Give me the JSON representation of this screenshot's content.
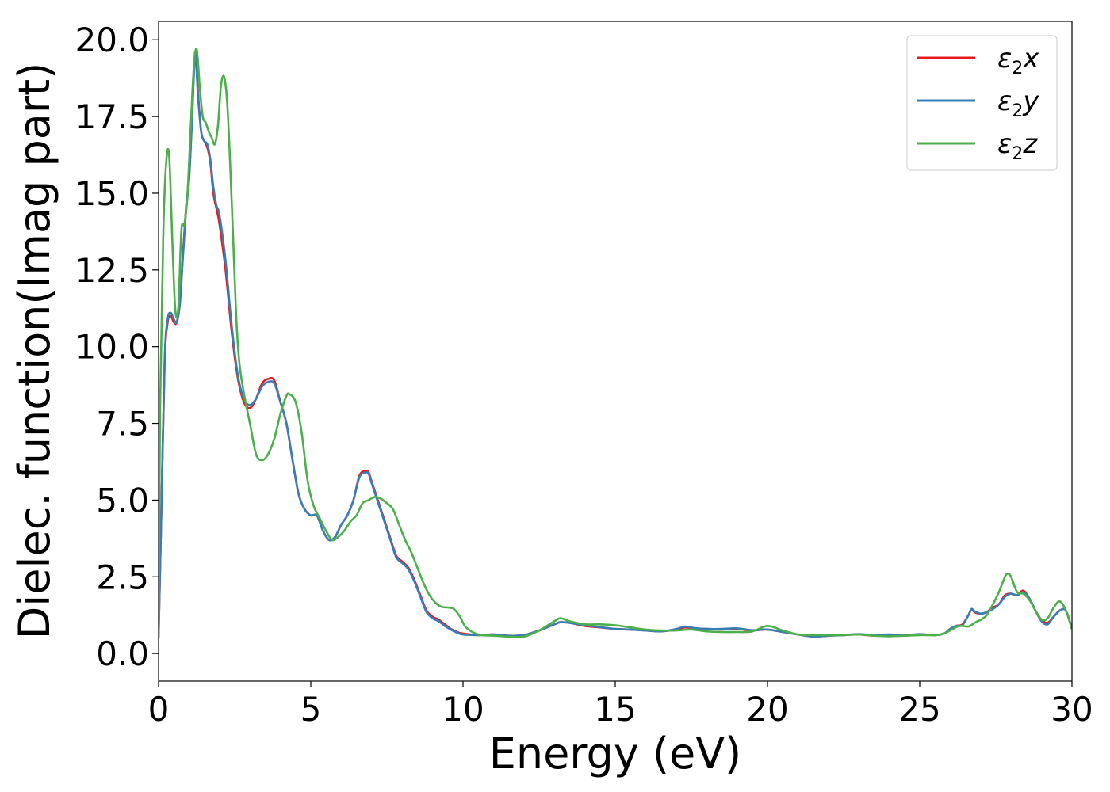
{
  "chart_data": {
    "type": "line",
    "xlabel": "Energy (eV)",
    "ylabel": "Dielec. function(Imag part)",
    "xlim": [
      0,
      30
    ],
    "ylim": [
      -0.9,
      20.6
    ],
    "xticks": [
      0,
      5,
      10,
      15,
      20,
      25,
      30
    ],
    "xtick_labels": [
      "0",
      "5",
      "10",
      "15",
      "20",
      "25",
      "30"
    ],
    "yticks": [
      0,
      2.5,
      5,
      7.5,
      10,
      12.5,
      15,
      17.5,
      20
    ],
    "ytick_labels": [
      "0.0",
      "2.5",
      "5.0",
      "7.5",
      "10.0",
      "12.5",
      "15.0",
      "17.5",
      "20.0"
    ],
    "grid": false,
    "legend_position": "top-right",
    "series": [
      {
        "name": "ε2x",
        "label_base": "ε",
        "label_sub": "2",
        "label_tail": "x",
        "color": "#e41a1c",
        "x": [
          0,
          0.1,
          0.2,
          0.3,
          0.4,
          0.5,
          0.6,
          0.7,
          0.8,
          0.9,
          1.0,
          1.1,
          1.2,
          1.3,
          1.4,
          1.5,
          1.6,
          1.7,
          1.8,
          1.9,
          2.0,
          2.2,
          2.4,
          2.6,
          2.8,
          3.0,
          3.2,
          3.4,
          3.6,
          3.8,
          4.0,
          4.2,
          4.4,
          4.6,
          4.8,
          5.0,
          5.2,
          5.4,
          5.6,
          5.8,
          6.0,
          6.2,
          6.4,
          6.6,
          6.8,
          6.9,
          7.0,
          7.2,
          7.4,
          7.6,
          7.8,
          8.0,
          8.2,
          8.4,
          8.6,
          8.8,
          9.0,
          9.2,
          9.4,
          9.6,
          9.8,
          10.0,
          10.5,
          11.0,
          11.5,
          12.0,
          12.5,
          13.0,
          13.2,
          13.5,
          14.0,
          14.5,
          15.0,
          15.5,
          16.0,
          16.5,
          17.0,
          17.3,
          17.6,
          18.0,
          18.5,
          19.0,
          19.5,
          20.0,
          20.5,
          21.0,
          21.5,
          22.0,
          22.5,
          23.0,
          23.5,
          24.0,
          24.5,
          25.0,
          25.5,
          25.8,
          26.0,
          26.2,
          26.4,
          26.6,
          26.7,
          26.8,
          27.0,
          27.2,
          27.4,
          27.6,
          27.8,
          28.0,
          28.2,
          28.4,
          28.6,
          28.8,
          29.0,
          29.2,
          29.4,
          29.6,
          29.8,
          30.0
        ],
        "values": [
          0.5,
          5.0,
          9.5,
          10.8,
          11.0,
          10.8,
          10.8,
          11.5,
          13.0,
          14.5,
          15.5,
          17.5,
          19.6,
          18.2,
          17.0,
          16.7,
          16.5,
          16.0,
          15.0,
          14.5,
          14.0,
          12.5,
          10.5,
          9.0,
          8.2,
          8.0,
          8.3,
          8.8,
          8.95,
          8.9,
          8.2,
          7.5,
          6.3,
          5.2,
          4.7,
          4.5,
          4.5,
          4.0,
          3.7,
          3.8,
          4.2,
          4.5,
          5.0,
          5.8,
          5.95,
          5.9,
          5.6,
          5.0,
          4.4,
          3.8,
          3.2,
          3.0,
          2.8,
          2.4,
          1.9,
          1.4,
          1.2,
          1.1,
          0.95,
          0.8,
          0.7,
          0.65,
          0.6,
          0.62,
          0.58,
          0.6,
          0.75,
          0.95,
          1.02,
          1.0,
          0.9,
          0.85,
          0.8,
          0.78,
          0.75,
          0.72,
          0.78,
          0.85,
          0.82,
          0.8,
          0.78,
          0.8,
          0.75,
          0.78,
          0.7,
          0.62,
          0.55,
          0.58,
          0.6,
          0.62,
          0.58,
          0.6,
          0.58,
          0.62,
          0.6,
          0.65,
          0.8,
          0.9,
          0.95,
          1.25,
          1.45,
          1.35,
          1.3,
          1.35,
          1.5,
          1.6,
          1.9,
          1.95,
          1.9,
          2.05,
          1.8,
          1.4,
          1.1,
          1.0,
          1.2,
          1.4,
          1.4,
          0.8
        ],
        "ylim_note": ""
      },
      {
        "name": "ε2y",
        "label_base": "ε",
        "label_sub": "2",
        "label_tail": "y",
        "color": "#377eb8",
        "x": [
          0,
          0.1,
          0.2,
          0.3,
          0.4,
          0.5,
          0.6,
          0.7,
          0.8,
          0.9,
          1.0,
          1.1,
          1.2,
          1.3,
          1.4,
          1.5,
          1.6,
          1.7,
          1.8,
          1.9,
          2.0,
          2.2,
          2.4,
          2.6,
          2.8,
          3.0,
          3.2,
          3.4,
          3.6,
          3.8,
          4.0,
          4.2,
          4.4,
          4.6,
          4.8,
          5.0,
          5.2,
          5.4,
          5.6,
          5.8,
          6.0,
          6.2,
          6.4,
          6.6,
          6.8,
          6.9,
          7.0,
          7.2,
          7.4,
          7.6,
          7.8,
          8.0,
          8.2,
          8.4,
          8.6,
          8.8,
          9.0,
          9.2,
          9.4,
          9.6,
          9.8,
          10.0,
          10.5,
          11.0,
          11.5,
          12.0,
          12.5,
          13.0,
          13.2,
          13.5,
          14.0,
          14.5,
          15.0,
          15.5,
          16.0,
          16.5,
          17.0,
          17.3,
          17.6,
          18.0,
          18.5,
          19.0,
          19.5,
          20.0,
          20.5,
          21.0,
          21.5,
          22.0,
          22.5,
          23.0,
          23.5,
          24.0,
          24.5,
          25.0,
          25.5,
          25.8,
          26.0,
          26.2,
          26.4,
          26.6,
          26.7,
          26.8,
          27.0,
          27.2,
          27.4,
          27.6,
          27.8,
          28.0,
          28.2,
          28.4,
          28.6,
          28.8,
          29.0,
          29.2,
          29.4,
          29.6,
          29.8,
          30.0
        ],
        "values": [
          0.5,
          5.0,
          9.6,
          10.9,
          11.1,
          10.9,
          10.8,
          11.4,
          12.9,
          14.4,
          15.4,
          17.4,
          19.5,
          18.1,
          17.0,
          16.7,
          16.6,
          16.1,
          15.2,
          14.6,
          14.3,
          12.8,
          10.7,
          9.1,
          8.3,
          8.1,
          8.3,
          8.7,
          8.85,
          8.8,
          8.2,
          7.5,
          6.3,
          5.2,
          4.7,
          4.5,
          4.5,
          4.0,
          3.7,
          3.8,
          4.2,
          4.5,
          5.0,
          5.75,
          5.9,
          5.85,
          5.55,
          4.95,
          4.35,
          3.75,
          3.15,
          2.95,
          2.75,
          2.35,
          1.85,
          1.35,
          1.15,
          1.05,
          0.9,
          0.78,
          0.68,
          0.62,
          0.6,
          0.62,
          0.58,
          0.6,
          0.75,
          0.95,
          1.02,
          1.0,
          0.92,
          0.86,
          0.8,
          0.78,
          0.75,
          0.72,
          0.8,
          0.88,
          0.83,
          0.8,
          0.8,
          0.82,
          0.76,
          0.78,
          0.7,
          0.62,
          0.55,
          0.58,
          0.6,
          0.63,
          0.6,
          0.62,
          0.6,
          0.63,
          0.6,
          0.65,
          0.8,
          0.9,
          0.92,
          1.25,
          1.45,
          1.38,
          1.3,
          1.35,
          1.45,
          1.6,
          1.85,
          1.95,
          1.9,
          2.0,
          1.8,
          1.4,
          1.05,
          0.95,
          1.2,
          1.4,
          1.4,
          0.8
        ]
      },
      {
        "name": "ε2z",
        "label_base": "ε",
        "label_sub": "2",
        "label_tail": "z",
        "color": "#4daf4a",
        "x": [
          0,
          0.05,
          0.15,
          0.25,
          0.35,
          0.45,
          0.55,
          0.65,
          0.75,
          0.85,
          0.95,
          1.05,
          1.15,
          1.25,
          1.35,
          1.45,
          1.55,
          1.65,
          1.75,
          1.85,
          1.95,
          2.05,
          2.15,
          2.25,
          2.35,
          2.45,
          2.55,
          2.65,
          2.8,
          3.0,
          3.2,
          3.4,
          3.6,
          3.8,
          4.0,
          4.2,
          4.3,
          4.5,
          4.7,
          4.9,
          5.1,
          5.3,
          5.5,
          5.7,
          5.9,
          6.1,
          6.3,
          6.5,
          6.7,
          6.9,
          7.1,
          7.3,
          7.5,
          7.7,
          7.9,
          8.1,
          8.3,
          8.5,
          8.7,
          8.9,
          9.1,
          9.3,
          9.5,
          9.7,
          9.9,
          10.1,
          10.5,
          11.0,
          11.5,
          12.0,
          12.5,
          13.0,
          13.2,
          13.5,
          14.0,
          14.5,
          15.0,
          15.5,
          16.0,
          16.5,
          17.0,
          17.5,
          18.0,
          18.5,
          19.0,
          19.5,
          20.0,
          20.5,
          21.0,
          21.5,
          22.0,
          22.5,
          23.0,
          23.5,
          24.0,
          24.5,
          25.0,
          25.5,
          25.8,
          26.0,
          26.3,
          26.6,
          26.8,
          27.0,
          27.2,
          27.4,
          27.6,
          27.8,
          27.9,
          28.0,
          28.2,
          28.4,
          28.6,
          28.8,
          29.0,
          29.2,
          29.4,
          29.6,
          29.8,
          30.0
        ],
        "values": [
          0.5,
          8.0,
          13.5,
          16.0,
          16.2,
          13.5,
          11.2,
          11.3,
          13.8,
          14.0,
          15.0,
          17.0,
          19.0,
          19.7,
          18.5,
          17.5,
          17.3,
          17.0,
          16.8,
          16.6,
          17.2,
          18.5,
          18.8,
          18.0,
          16.0,
          13.5,
          11.0,
          9.5,
          8.5,
          7.5,
          6.5,
          6.3,
          6.5,
          7.0,
          7.8,
          8.4,
          8.45,
          8.2,
          7.2,
          5.6,
          4.8,
          4.4,
          4.0,
          3.7,
          3.8,
          4.0,
          4.3,
          4.5,
          4.9,
          5.0,
          5.1,
          5.05,
          4.9,
          4.7,
          4.2,
          3.7,
          3.3,
          2.8,
          2.3,
          1.9,
          1.65,
          1.52,
          1.5,
          1.45,
          1.2,
          0.85,
          0.62,
          0.58,
          0.55,
          0.55,
          0.75,
          1.05,
          1.15,
          1.05,
          0.95,
          0.95,
          0.92,
          0.85,
          0.78,
          0.75,
          0.75,
          0.78,
          0.72,
          0.7,
          0.7,
          0.72,
          0.9,
          0.75,
          0.62,
          0.6,
          0.6,
          0.6,
          0.62,
          0.58,
          0.56,
          0.58,
          0.6,
          0.6,
          0.65,
          0.75,
          0.9,
          0.88,
          1.0,
          1.1,
          1.25,
          1.6,
          2.0,
          2.5,
          2.6,
          2.5,
          2.0,
          1.95,
          1.75,
          1.4,
          1.1,
          1.15,
          1.5,
          1.7,
          1.4,
          0.8
        ]
      }
    ]
  }
}
